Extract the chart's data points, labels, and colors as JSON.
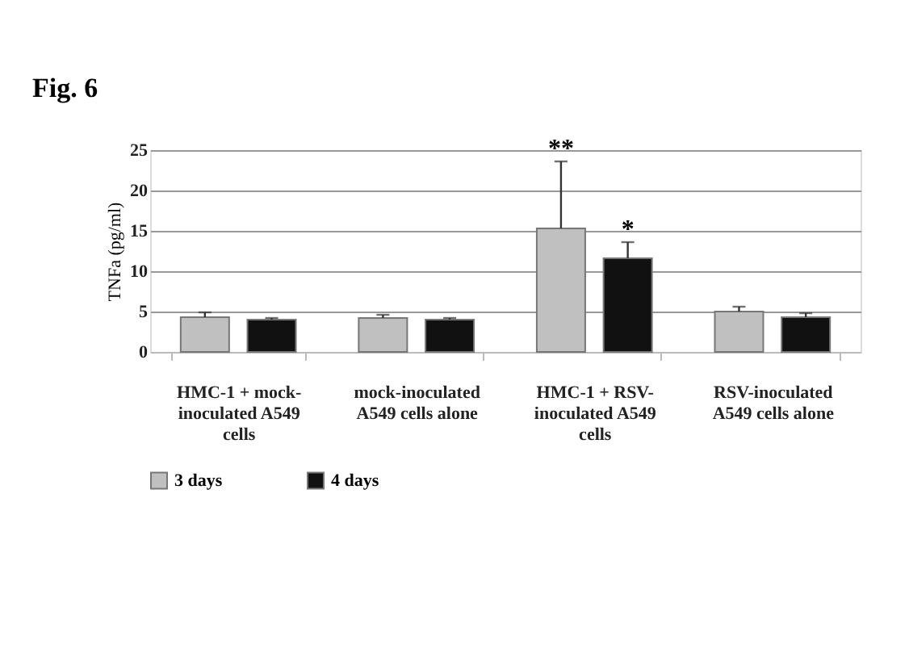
{
  "chart_data": {
    "type": "bar",
    "title": "Fig. 6",
    "ylabel": "TNFa (pg/ml)",
    "categories": [
      "HMC-1 + mock-inoculated A549 cells",
      "mock-inoculated A549 cells alone",
      "HMC-1 + RSV-inoculated A549 cells",
      "RSV-inoculated A549 cells alone"
    ],
    "series": [
      {
        "name": "3 days",
        "color": "#c0c0c0",
        "values": [
          4.3,
          4.2,
          15.3,
          5.0
        ],
        "errors": [
          [
            4.3,
            4.9
          ],
          [
            4.2,
            4.6
          ],
          [
            15.3,
            23.6
          ],
          [
            5.0,
            5.6
          ]
        ]
      },
      {
        "name": "4 days",
        "color": "#111111",
        "values": [
          4.0,
          4.0,
          11.6,
          4.3
        ],
        "errors": [
          [
            4.0,
            4.2
          ],
          [
            4.0,
            4.2
          ],
          [
            11.6,
            13.6
          ],
          [
            4.3,
            4.8
          ]
        ]
      }
    ],
    "annotations": [
      "**",
      "*"
    ],
    "ylim": [
      0,
      25
    ],
    "yticks": [
      0,
      5,
      10,
      15,
      20,
      25
    ],
    "grid": "y",
    "legend": "bottom"
  }
}
